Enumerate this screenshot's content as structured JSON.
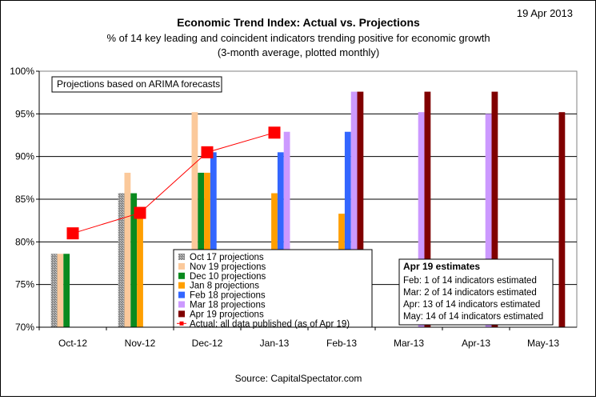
{
  "chart_data": {
    "type": "bar",
    "date": "19 Apr 2013",
    "title": "Economic Trend Index: Actual vs. Projections",
    "subtitle": "% of 14 key leading and coincident indicators trending positive for economic growth",
    "subtitle2": "(3-month average, plotted monthly)",
    "source": "Source: CapitalSpectator.com",
    "note": "Projections based on ARIMA forecasts",
    "ylim": [
      70,
      100
    ],
    "y_ticks": [
      "70%",
      "75%",
      "80%",
      "85%",
      "90%",
      "95%",
      "100%"
    ],
    "grid": true,
    "categories": [
      "Oct-12",
      "Nov-12",
      "Dec-12",
      "Jan-13",
      "Feb-13",
      "Mar-13",
      "Apr-13",
      "May-13"
    ],
    "series": [
      {
        "name": "Oct 17 projections",
        "color": "#9b9b9b",
        "hatch": true,
        "values": [
          78.6,
          85.7,
          null,
          null,
          null,
          null,
          null,
          null
        ]
      },
      {
        "name": "Nov 19 projections",
        "color": "#fbc99b",
        "values": [
          78.6,
          88.1,
          95.2,
          null,
          null,
          null,
          null,
          null
        ]
      },
      {
        "name": "Dec 10 projections",
        "color": "#0a8a1f",
        "values": [
          78.6,
          85.7,
          88.1,
          null,
          null,
          null,
          null,
          null
        ]
      },
      {
        "name": "Jan 8 projections",
        "color": "#ff9f00",
        "values": [
          null,
          83.3,
          88.1,
          85.7,
          83.3,
          null,
          null,
          null
        ]
      },
      {
        "name": "Feb 18 projections",
        "color": "#3366ff",
        "values": [
          null,
          null,
          90.5,
          90.5,
          92.9,
          null,
          null,
          null
        ]
      },
      {
        "name": "Mar 18 projections",
        "color": "#cc99ff",
        "values": [
          null,
          null,
          null,
          92.9,
          97.6,
          95.2,
          95.0,
          null
        ]
      },
      {
        "name": "Apr 19 projections",
        "color": "#800000",
        "values": [
          null,
          null,
          null,
          null,
          97.6,
          97.6,
          97.6,
          95.2
        ]
      }
    ],
    "actual": {
      "name": "Actual: all data published (as of Apr 19)",
      "color": "#ff0000",
      "values": [
        81.0,
        83.4,
        90.5,
        92.8
      ]
    },
    "estimates": {
      "title": "Apr 19 estimates",
      "lines": [
        "Feb:  1 of 14 indicators estimated",
        "Mar:  2 of 14 indicators estimated",
        "Apr:  13 of 14 indicators estimated",
        "May: 14 of 14 indicators estimated"
      ]
    }
  }
}
